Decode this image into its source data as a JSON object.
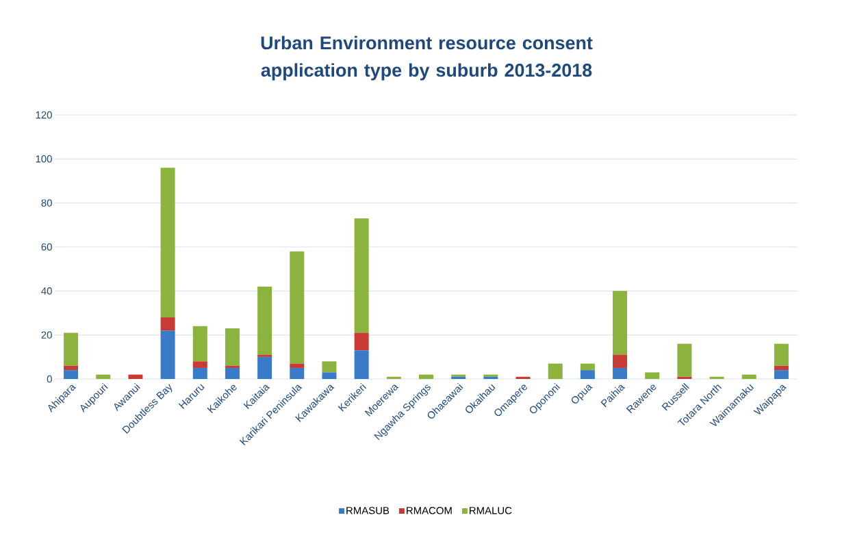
{
  "chart_data": {
    "type": "bar",
    "stacked": true,
    "title": "Urban Environment resource consent application type by suburb 2013-2018",
    "categories": [
      "Ahipara",
      "Aupouri",
      "Awanui",
      "Doubtless Bay",
      "Haruru",
      "Kaikohe",
      "Kaitaia",
      "Karikari Peninsula",
      "Kawakawa",
      "Kerikeri",
      "Moerewa",
      "Ngawha Springs",
      "Ohaeawai",
      "Okaihau",
      "Omapere",
      "Opononi",
      "Opua",
      "Paihia",
      "Rawene",
      "Russell",
      "Totara North",
      "Waimamaku",
      "Waipapa"
    ],
    "series": [
      {
        "name": "RMASUB",
        "color": "#3a7bc8",
        "values": [
          4,
          0,
          0,
          22,
          5,
          5,
          10,
          5,
          3,
          13,
          0,
          0,
          1,
          1,
          0,
          0,
          4,
          5,
          0,
          0,
          0,
          0,
          4
        ]
      },
      {
        "name": "RMACOM",
        "color": "#c83b35",
        "values": [
          2,
          0,
          2,
          6,
          3,
          1,
          1,
          2,
          0,
          8,
          0,
          0,
          0,
          0,
          1,
          0,
          0,
          6,
          0,
          1,
          0,
          0,
          2
        ]
      },
      {
        "name": "RMALUC",
        "color": "#8db33f",
        "values": [
          15,
          2,
          0,
          68,
          16,
          17,
          31,
          51,
          5,
          52,
          1,
          2,
          1,
          1,
          0,
          7,
          3,
          29,
          3,
          15,
          1,
          2,
          10
        ]
      }
    ],
    "ylim": [
      0,
      120
    ],
    "yticks": [
      0,
      20,
      40,
      60,
      80,
      100,
      120
    ],
    "grid": "y",
    "legend": "bottom"
  }
}
